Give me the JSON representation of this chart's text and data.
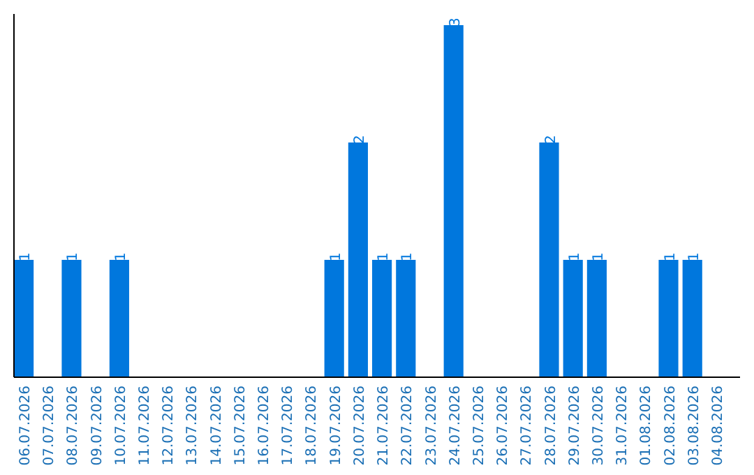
{
  "chart_data": {
    "type": "bar",
    "categories": [
      "06.07.2026",
      "07.07.2026",
      "08.07.2026",
      "09.07.2026",
      "10.07.2026",
      "11.07.2026",
      "12.07.2026",
      "13.07.2026",
      "14.07.2026",
      "15.07.2026",
      "16.07.2026",
      "17.07.2026",
      "18.07.2026",
      "19.07.2026",
      "20.07.2026",
      "21.07.2026",
      "22.07.2026",
      "23.07.2026",
      "24.07.2026",
      "25.07.2026",
      "26.07.2026",
      "27.07.2026",
      "28.07.2026",
      "29.07.2026",
      "30.07.2026",
      "31.07.2026",
      "01.08.2026",
      "02.08.2026",
      "03.08.2026",
      "04.08.2026"
    ],
    "values": [
      1,
      0,
      1,
      0,
      1,
      0,
      0,
      0,
      0,
      0,
      0,
      0,
      0,
      1,
      2,
      1,
      1,
      0,
      3,
      0,
      0,
      0,
      2,
      1,
      1,
      0,
      0,
      1,
      1,
      0
    ],
    "value_labels": [
      "1",
      null,
      "1",
      null,
      "1",
      null,
      null,
      null,
      null,
      null,
      null,
      null,
      null,
      "1",
      "2",
      "1",
      "1",
      null,
      "3",
      null,
      null,
      null,
      "2",
      "1",
      "1",
      null,
      null,
      "1",
      "1",
      null
    ],
    "color": "#0077dd",
    "ylim": [
      0,
      3
    ],
    "tick_labels": "x"
  }
}
